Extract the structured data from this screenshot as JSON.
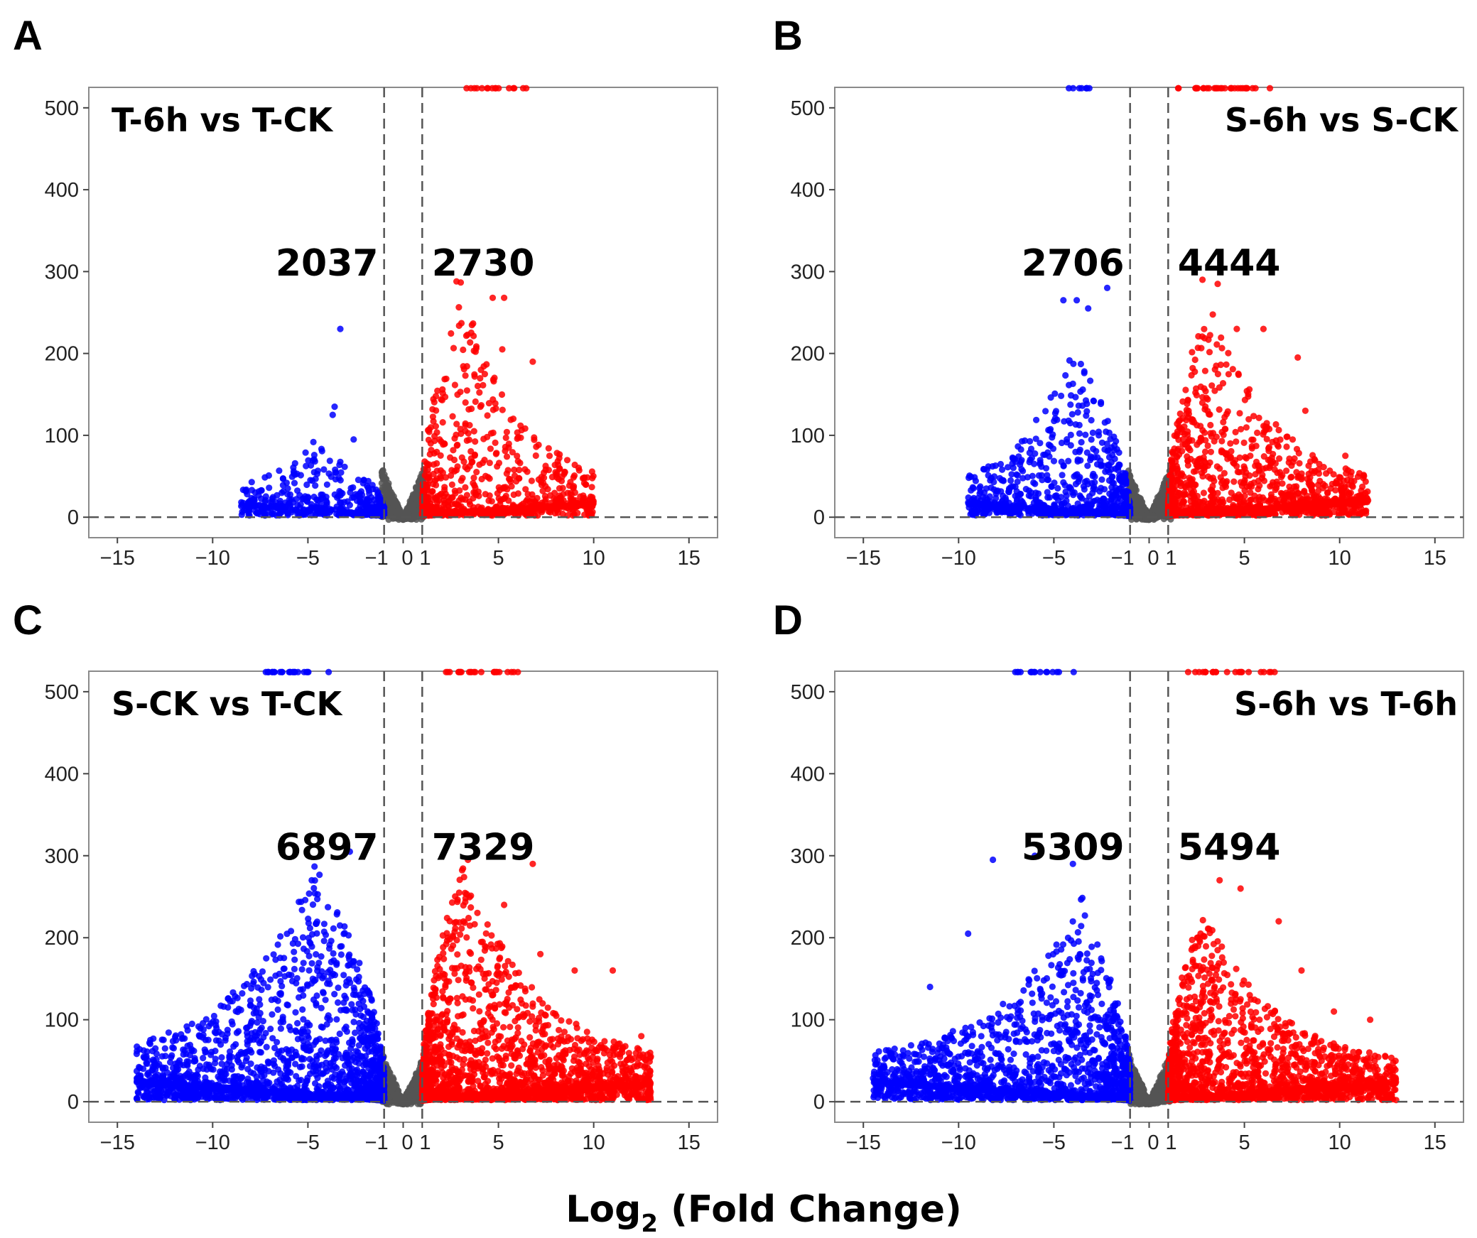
{
  "figure": {
    "xlabel_main": "Log",
    "xlabel_sub": "2",
    "xlabel_rest": " (Fold Change)"
  },
  "colors": {
    "down": "#0000ff",
    "up": "#ff0000",
    "ns": "#555555",
    "threshold_line": "#555555",
    "frame": "#8a8a8a"
  },
  "chart_data": [
    {
      "type": "scatter",
      "panel": "A",
      "title": "T-6h vs T-CK",
      "title_position": "top-left",
      "down_count": "2037",
      "up_count": "2730",
      "xlim": [
        -16.5,
        16.5
      ],
      "ylim": [
        -25,
        525
      ],
      "x_ticks": [
        -15,
        -10,
        -5,
        -1,
        0,
        1,
        5,
        10,
        15
      ],
      "x_tick_labels": [
        "−15",
        "−10",
        "−5",
        "−1",
        "0",
        "1",
        "5",
        "10",
        "15"
      ],
      "y_ticks": [
        0,
        100,
        200,
        300,
        400,
        500
      ],
      "y_tick_labels": [
        "0",
        "100",
        "200",
        "300",
        "400",
        "500"
      ],
      "log2fc_thresholds": [
        -1,
        1
      ],
      "padj_threshold_line": 0,
      "down_profile": {
        "min_x": -8.5,
        "max_x": -1.0,
        "spread_min": 10,
        "spread_max": 90,
        "count": 380,
        "outliers": [
          [
            -3.3,
            230
          ],
          [
            -3.6,
            135
          ],
          [
            -3.7,
            125
          ],
          [
            -2.6,
            95
          ]
        ],
        "capped_x": []
      },
      "up_profile": {
        "min_x": 1.0,
        "max_x": 10.0,
        "spread_min": 20,
        "spread_max": 280,
        "count": 650,
        "peak_x": 3.0,
        "outliers": [
          [
            2.8,
            288
          ],
          [
            4.7,
            268
          ],
          [
            5.3,
            268
          ],
          [
            5.2,
            205
          ],
          [
            6.8,
            190
          ],
          [
            8.0,
            55
          ],
          [
            9.8,
            15
          ]
        ],
        "capped_x": [
          4.2,
          5.5
        ]
      }
    },
    {
      "type": "scatter",
      "panel": "B",
      "title": "S-6h vs S-CK",
      "title_position": "top-right",
      "down_count": "2706",
      "up_count": "4444",
      "xlim": [
        -16.5,
        16.5
      ],
      "ylim": [
        -25,
        525
      ],
      "x_ticks": [
        -15,
        -10,
        -5,
        -1,
        0,
        1,
        5,
        10,
        15
      ],
      "x_tick_labels": [
        "−15",
        "−10",
        "−5",
        "−1",
        "0",
        "1",
        "5",
        "10",
        "15"
      ],
      "y_ticks": [
        0,
        100,
        200,
        300,
        400,
        500
      ],
      "y_tick_labels": [
        "0",
        "100",
        "200",
        "300",
        "400",
        "500"
      ],
      "log2fc_thresholds": [
        -1,
        1
      ],
      "padj_threshold_line": 0,
      "down_profile": {
        "min_x": -9.5,
        "max_x": -1.0,
        "spread_min": 10,
        "spread_max": 200,
        "count": 650,
        "peak_x": -4.0,
        "outliers": [
          [
            -4.5,
            265
          ],
          [
            -3.8,
            265
          ],
          [
            -2.2,
            280
          ],
          [
            -3.2,
            255
          ],
          [
            -9.2,
            18
          ]
        ],
        "capped_x": [
          -4.0
        ]
      },
      "up_profile": {
        "min_x": 1.0,
        "max_x": 11.5,
        "spread_min": 15,
        "spread_max": 260,
        "count": 1000,
        "peak_x": 3.0,
        "outliers": [
          [
            2.8,
            290
          ],
          [
            3.6,
            285
          ],
          [
            4.6,
            230
          ],
          [
            6.0,
            230
          ],
          [
            7.8,
            195
          ],
          [
            8.2,
            130
          ],
          [
            10.3,
            75
          ],
          [
            11.2,
            20
          ]
        ],
        "capped_x": [
          2.5,
          3.5,
          4.5,
          5.5
        ]
      }
    },
    {
      "type": "scatter",
      "panel": "C",
      "title": "S-CK vs T-CK",
      "title_position": "top-left",
      "down_count": "6897",
      "up_count": "7329",
      "xlim": [
        -16.5,
        16.5
      ],
      "ylim": [
        -25,
        525
      ],
      "x_ticks": [
        -15,
        -10,
        -5,
        -1,
        0,
        1,
        5,
        10,
        15
      ],
      "x_tick_labels": [
        "−15",
        "−10",
        "−5",
        "−1",
        "0",
        "1",
        "5",
        "10",
        "15"
      ],
      "y_ticks": [
        0,
        100,
        200,
        300,
        400,
        500
      ],
      "y_tick_labels": [
        "0",
        "100",
        "200",
        "300",
        "400",
        "500"
      ],
      "log2fc_thresholds": [
        -1,
        1
      ],
      "padj_threshold_line": 0,
      "down_profile": {
        "min_x": -14.0,
        "max_x": -1.0,
        "spread_min": 30,
        "spread_max": 280,
        "count": 1500,
        "peak_x": -4.5,
        "outliers": [
          [
            -2.8,
            305
          ],
          [
            -4.8,
            270
          ],
          [
            -9.2,
            115
          ],
          [
            -9.8,
            90
          ],
          [
            -13.8,
            30
          ]
        ],
        "capped_x": [
          -5.0,
          -6.0,
          -7.0
        ]
      },
      "up_profile": {
        "min_x": 1.0,
        "max_x": 13.0,
        "spread_min": 30,
        "spread_max": 280,
        "count": 1500,
        "peak_x": 3.0,
        "outliers": [
          [
            3.4,
            295
          ],
          [
            6.8,
            290
          ],
          [
            5.3,
            240
          ],
          [
            7.2,
            180
          ],
          [
            9.0,
            160
          ],
          [
            11.0,
            160
          ],
          [
            12.5,
            80
          ],
          [
            13.0,
            55
          ]
        ],
        "capped_x": [
          3.0,
          4.0,
          5.0
        ]
      }
    },
    {
      "type": "scatter",
      "panel": "D",
      "title": "S-6h vs T-6h",
      "title_position": "top-right",
      "down_count": "5309",
      "up_count": "5494",
      "xlim": [
        -16.5,
        16.5
      ],
      "ylim": [
        -25,
        525
      ],
      "x_ticks": [
        -15,
        -10,
        -5,
        -1,
        0,
        1,
        5,
        10,
        15
      ],
      "x_tick_labels": [
        "−15",
        "−10",
        "−5",
        "−1",
        "0",
        "1",
        "5",
        "10",
        "15"
      ],
      "y_ticks": [
        0,
        100,
        200,
        300,
        400,
        500
      ],
      "y_tick_labels": [
        "0",
        "100",
        "200",
        "300",
        "400",
        "500"
      ],
      "log2fc_thresholds": [
        -1,
        1
      ],
      "padj_threshold_line": 0,
      "down_profile": {
        "min_x": -14.5,
        "max_x": -1.0,
        "spread_min": 30,
        "spread_max": 230,
        "count": 1300,
        "peak_x": -3.5,
        "outliers": [
          [
            -6.0,
            300
          ],
          [
            -4.0,
            290
          ],
          [
            -8.2,
            295
          ],
          [
            -9.5,
            205
          ],
          [
            -11.5,
            140
          ],
          [
            -14.0,
            30
          ]
        ],
        "capped_x": [
          -5.0,
          -6.0
        ]
      },
      "up_profile": {
        "min_x": 1.0,
        "max_x": 13.0,
        "spread_min": 30,
        "spread_max": 230,
        "count": 1300,
        "peak_x": 2.5,
        "outliers": [
          [
            2.5,
            305
          ],
          [
            3.7,
            270
          ],
          [
            4.8,
            260
          ],
          [
            6.8,
            220
          ],
          [
            8.0,
            160
          ],
          [
            9.7,
            110
          ],
          [
            11.6,
            100
          ],
          [
            12.8,
            30
          ]
        ],
        "capped_x": [
          2.5,
          4.0,
          5.5
        ]
      }
    }
  ]
}
